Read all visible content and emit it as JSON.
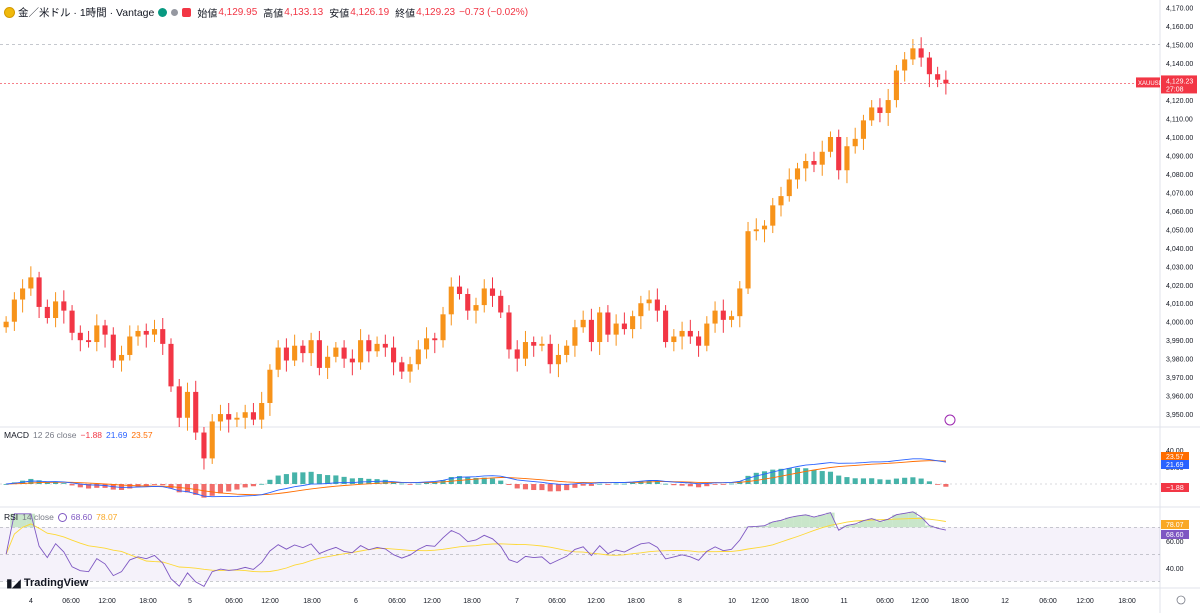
{
  "header": {
    "title": "金／米ドル · 1時間 · Vantage",
    "open_label": "始値",
    "open": "4,129.95",
    "high_label": "高値",
    "high": "4,133.13",
    "low_label": "安値",
    "low": "4,126.19",
    "close_label": "終値",
    "close": "4,129.23",
    "change": "−0.73 (−0.02%)"
  },
  "price_tag": {
    "symbol": "XAUUSD",
    "price": "4,129.23",
    "countdown": "27:08"
  },
  "macd": {
    "label": "MACD",
    "params": "12 26 close",
    "hist": "−1.88",
    "macd": "21.69",
    "signal": "23.57",
    "tags": [
      "23.57",
      "21.69",
      "−1.88"
    ],
    "axis": [
      "40.00",
      "20.00"
    ]
  },
  "rsi": {
    "label": "RSI",
    "params": "14 close",
    "rsi": "68.60",
    "ma": "78.07",
    "tags": [
      "78.07",
      "68.60"
    ],
    "axis": [
      "60.00",
      "40.00"
    ]
  },
  "brand": "TradingView",
  "colors": {
    "up": "#f7931a",
    "down": "#f23645",
    "macd": "#2962ff",
    "signal": "#ff6d00",
    "rsi": "#7e57c2",
    "rsi_ma": "#fdd835",
    "hist_up": "#26a69a",
    "hist_down": "#ef5350"
  },
  "chart_data": {
    "type": "candlestick",
    "y_ticks": [
      3950,
      3960,
      3970,
      3980,
      3990,
      4000,
      4010,
      4020,
      4030,
      4040,
      4050,
      4060,
      4070,
      4080,
      4090,
      4100,
      4110,
      4120,
      4130,
      4140,
      4150,
      4160,
      4170
    ],
    "ylim": [
      3943,
      4172
    ],
    "x_labels": [
      "4",
      "06:00",
      "12:00",
      "18:00",
      "5",
      "06:00",
      "12:00",
      "18:00",
      "6",
      "06:00",
      "12:00",
      "18:00",
      "7",
      "06:00",
      "12:00",
      "18:00",
      "8",
      "10",
      "12:00",
      "18:00",
      "11",
      "06:00",
      "12:00",
      "18:00",
      "12",
      "06:00",
      "12:00",
      "18:00"
    ],
    "closes": [
      4000,
      4012,
      4018,
      4024,
      4008,
      4002,
      4011,
      4006,
      3994,
      3990,
      3989,
      3998,
      3993,
      3979,
      3982,
      3992,
      3995,
      3993,
      3996,
      3988,
      3965,
      3948,
      3962,
      3940,
      3926,
      3946,
      3950,
      3947,
      3948,
      3951,
      3947,
      3956,
      3974,
      3986,
      3979,
      3987,
      3983,
      3990,
      3975,
      3981,
      3986,
      3980,
      3978,
      3990,
      3984,
      3988,
      3986,
      3978,
      3973,
      3977,
      3985,
      3991,
      3990,
      4004,
      4019,
      4015,
      4006,
      4009,
      4018,
      4014,
      4005,
      3985,
      3980,
      3989,
      3987,
      3988,
      3977,
      3982,
      3987,
      3997,
      4001,
      3989,
      4005,
      3993,
      3999,
      3996,
      4003,
      4010,
      4012,
      4006,
      3989,
      3992,
      3995,
      3992,
      3987,
      3999,
      4006,
      4001,
      4003,
      4018,
      4049,
      4050,
      4052,
      4063,
      4068,
      4077,
      4083,
      4087,
      4085,
      4092,
      4100,
      4082,
      4095,
      4099,
      4109,
      4116,
      4113,
      4120,
      4136,
      4142,
      4148,
      4143,
      4134,
      4131,
      4129
    ],
    "macd_hist_peak": 8.0,
    "rsi_last": 68.6,
    "rsi_ma_last": 78.07
  }
}
